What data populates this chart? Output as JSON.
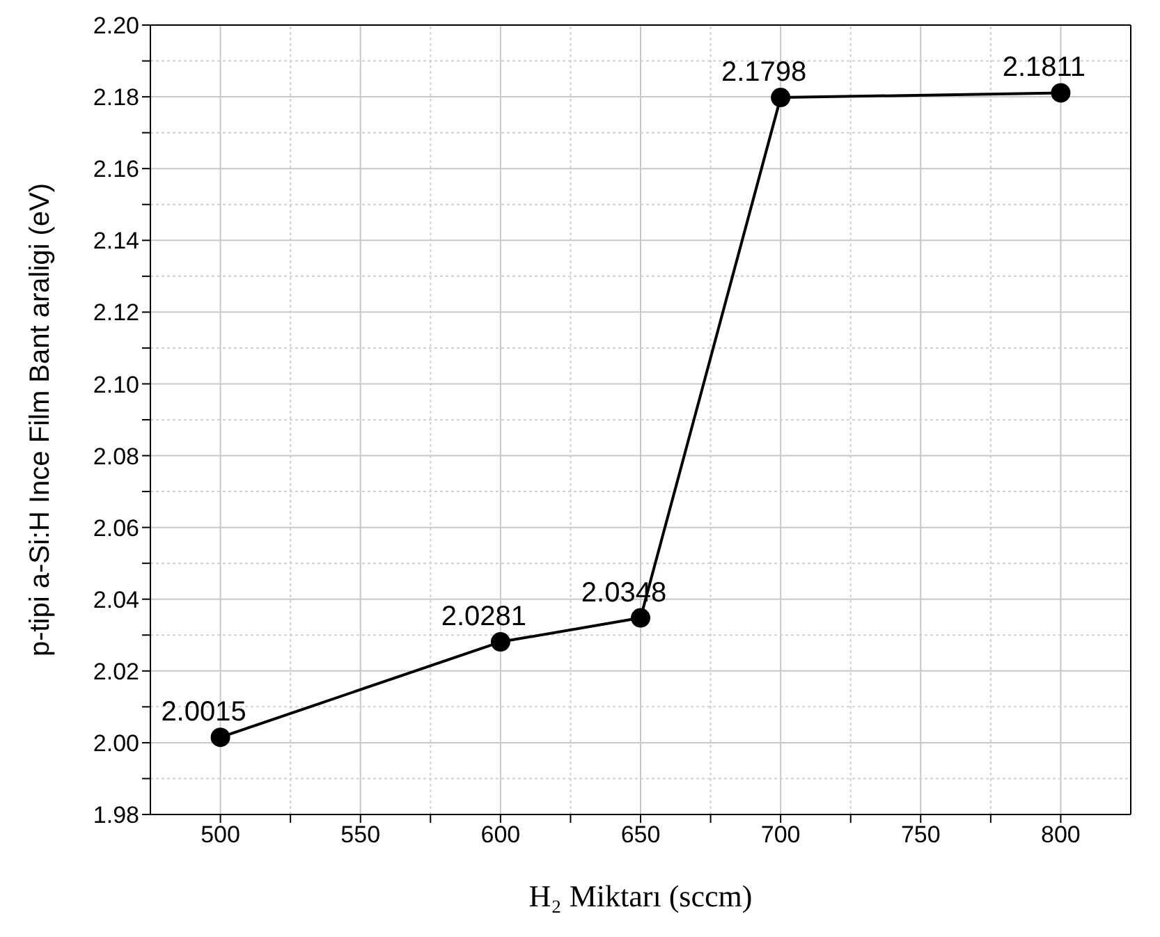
{
  "chart_data": {
    "type": "line",
    "xlabel": "H₂ Miktarı (sccm)",
    "ylabel": "p-tipi a-Si:H Ince Film Bant araligi (eV)",
    "x": [
      500,
      600,
      650,
      700,
      800
    ],
    "series": [
      {
        "color": "#000000",
        "values": [
          2.0015,
          2.0281,
          2.0348,
          2.1798,
          2.1811
        ]
      }
    ],
    "xlim": [
      475,
      825
    ],
    "xticks": [
      500,
      {
        "value": 525,
        "label": null
      },
      550,
      {
        "value": 575,
        "label": null
      },
      600,
      {
        "value": 625,
        "label": null
      },
      650,
      {
        "value": 675,
        "label": null
      },
      700,
      {
        "value": 725,
        "label": null
      },
      750,
      {
        "value": 775,
        "label": null
      },
      800
    ],
    "ylim": [
      1.98,
      2.2
    ],
    "yticks": [
      {
        "value": 1.98,
        "label": "1.98"
      },
      {
        "value": 1.99,
        "label": null
      },
      {
        "value": 2.0,
        "label": "2.00"
      },
      {
        "value": 2.01,
        "label": null
      },
      {
        "value": 2.02,
        "label": "2.02"
      },
      {
        "value": 2.03,
        "label": null
      },
      {
        "value": 2.04,
        "label": "2.04"
      },
      {
        "value": 2.05,
        "label": null
      },
      {
        "value": 2.06,
        "label": "2.06"
      },
      {
        "value": 2.07,
        "label": null
      },
      {
        "value": 2.08,
        "label": "2.08"
      },
      {
        "value": 2.09,
        "label": null
      },
      {
        "value": 2.1,
        "label": "2.10"
      },
      {
        "value": 2.11,
        "label": null
      },
      {
        "value": 2.12,
        "label": "2.12"
      },
      {
        "value": 2.13,
        "label": null
      },
      {
        "value": 2.14,
        "label": "2.14"
      },
      {
        "value": 2.15,
        "label": null
      },
      {
        "value": 2.16,
        "label": "2.16"
      },
      {
        "value": 2.17,
        "label": null
      },
      {
        "value": 2.18,
        "label": "2.18"
      },
      {
        "value": 2.19,
        "label": null
      },
      {
        "value": 2.2,
        "label": "2.20"
      }
    ],
    "grid": true,
    "marker": "circle",
    "line_style": "solid",
    "data_labels": true
  }
}
